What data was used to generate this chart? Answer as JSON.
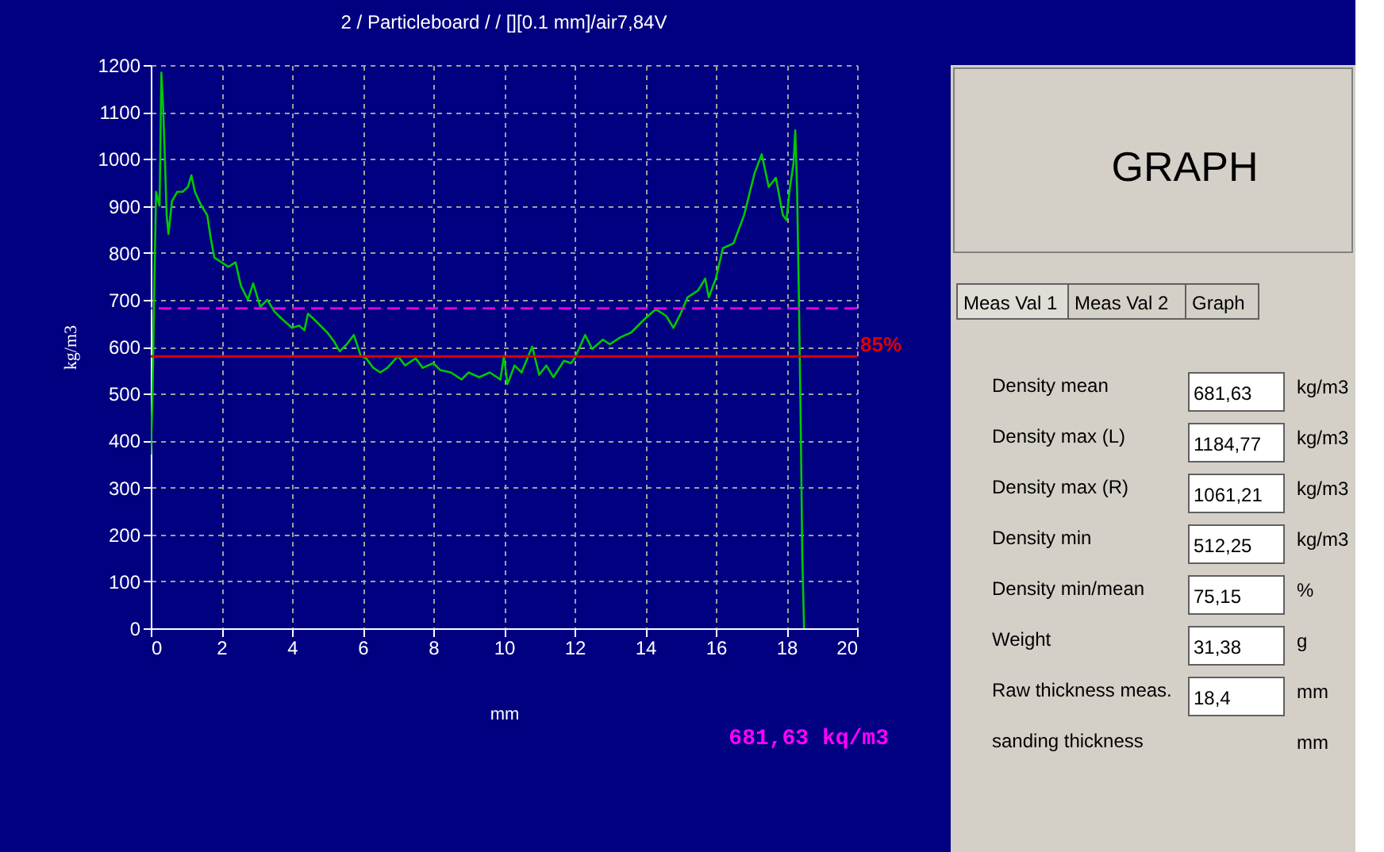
{
  "chart_data": [
    {
      "type": "line",
      "title": "2 / Particleboard / / [][0.1 mm]/air7,84V",
      "xlabel": "mm",
      "ylabel": "kg/m3",
      "xlim": [
        0,
        20
      ],
      "xticks": [
        0,
        2,
        4,
        6,
        8,
        10,
        12,
        14,
        16,
        18,
        20
      ],
      "ylim": [
        0,
        1200
      ],
      "yticks": [
        0,
        100,
        200,
        300,
        400,
        500,
        600,
        700,
        800,
        900,
        1000,
        1100,
        1200
      ],
      "grid": true,
      "marker": "none",
      "line_style": "solid",
      "series": [
        {
          "color": "#00c800",
          "x": [
            0.0,
            0.05,
            0.1,
            0.15,
            0.25,
            0.3,
            0.35,
            0.4,
            0.45,
            0.5,
            0.6,
            0.75,
            0.9,
            1.05,
            1.15,
            1.25,
            1.4,
            1.6,
            1.7,
            1.8,
            2.0,
            2.2,
            2.4,
            2.55,
            2.75,
            2.9,
            3.1,
            3.3,
            3.5,
            3.7,
            4.0,
            4.2,
            4.35,
            4.45,
            4.6,
            4.8,
            5.0,
            5.2,
            5.35,
            5.55,
            5.75,
            5.95,
            6.1,
            6.3,
            6.5,
            6.7,
            7.0,
            7.2,
            7.5,
            7.7,
            8.0,
            8.2,
            8.5,
            8.8,
            9.0,
            9.3,
            9.6,
            9.9,
            10.0,
            10.1,
            10.3,
            10.5,
            10.8,
            11.0,
            11.2,
            11.4,
            11.7,
            11.9,
            12.0,
            12.3,
            12.5,
            12.8,
            13.0,
            13.3,
            13.6,
            14.0,
            14.3,
            14.6,
            14.8,
            15.0,
            15.2,
            15.5,
            15.7,
            15.8,
            16.0,
            16.2,
            16.5,
            16.8,
            17.1,
            17.3,
            17.5,
            17.7,
            17.9,
            18.0,
            18.1,
            18.2,
            18.25,
            18.3,
            18.35,
            18.4,
            18.45,
            18.5
          ],
          "values": [
            370,
            500,
            730,
            930,
            900,
            1184,
            1110,
            1000,
            880,
            840,
            910,
            930,
            930,
            940,
            965,
            930,
            905,
            880,
            830,
            790,
            780,
            770,
            780,
            730,
            700,
            735,
            685,
            700,
            675,
            660,
            640,
            645,
            635,
            670,
            660,
            645,
            630,
            610,
            590,
            605,
            625,
            580,
            575,
            555,
            545,
            555,
            580,
            560,
            575,
            555,
            565,
            550,
            545,
            530,
            545,
            535,
            545,
            530,
            580,
            520,
            560,
            545,
            600,
            540,
            560,
            535,
            570,
            565,
            575,
            625,
            595,
            615,
            605,
            620,
            630,
            660,
            680,
            665,
            640,
            670,
            705,
            720,
            745,
            705,
            745,
            810,
            820,
            880,
            970,
            1010,
            940,
            960,
            880,
            870,
            940,
            990,
            1061,
            940,
            720,
            460,
            150,
            0
          ]
        }
      ],
      "ref_lines": [
        {
          "axis": "y",
          "value": 681.63,
          "color": "#e000e0",
          "line_style": "dashed"
        },
        {
          "axis": "y",
          "value": 579.39,
          "color": "#e00000",
          "line_style": "solid"
        }
      ],
      "annotations": [
        {
          "text": "85%",
          "x": 20,
          "y": 579.39
        },
        "681,63 kq/m3"
      ]
    },
    {
      "type": "other",
      "title": "GRAPH",
      "annotations": [
        "Meas Val 1",
        "Meas Val 2",
        "Graph",
        "Density mean",
        "681,63",
        "kg/m3",
        "Density max (L)",
        "1184,77",
        "kg/m3",
        "Density max (R)",
        "1061,21",
        "kg/m3",
        "Density min",
        "512,25",
        "kg/m3",
        "Density min/mean",
        "75,15",
        "%",
        "Weight",
        "31,38",
        "g",
        "Raw thickness meas.",
        "18,4",
        "mm",
        "sanding thickness",
        "mm"
      ]
    }
  ]
}
